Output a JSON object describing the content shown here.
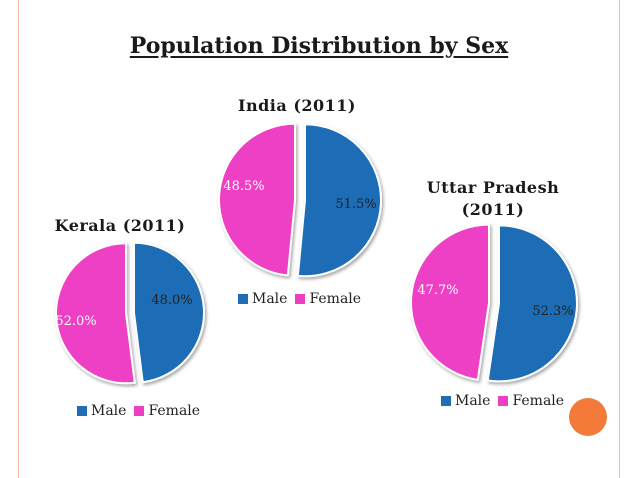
{
  "slide": {
    "title": "Population Distribution by Sex"
  },
  "colors": {
    "male": "#1f6db5",
    "female": "#ee3fc4",
    "accent_dot": "#f47a3a"
  },
  "chart_data": [
    {
      "type": "pie",
      "title": "India (2011)",
      "categories": [
        "Male",
        "Female"
      ],
      "values": [
        51.5,
        48.5
      ],
      "labels": [
        "51.5%",
        "48.5%"
      ],
      "legend": [
        "Male",
        "Female"
      ],
      "legend_position": "bottom"
    },
    {
      "type": "pie",
      "title": "Kerala (2011)",
      "categories": [
        "Male",
        "Female"
      ],
      "values": [
        48.0,
        52.0
      ],
      "labels": [
        "48.0%",
        "52.0%"
      ],
      "legend": [
        "Male",
        "Female"
      ],
      "legend_position": "bottom"
    },
    {
      "type": "pie",
      "title": "Uttar Pradesh (2011)",
      "title_lines": [
        "Uttar Pradesh",
        "(2011)"
      ],
      "categories": [
        "Male",
        "Female"
      ],
      "values": [
        52.3,
        47.7
      ],
      "labels": [
        "52.3%",
        "47.7%"
      ],
      "legend": [
        "Male",
        "Female"
      ],
      "legend_position": "bottom"
    }
  ]
}
